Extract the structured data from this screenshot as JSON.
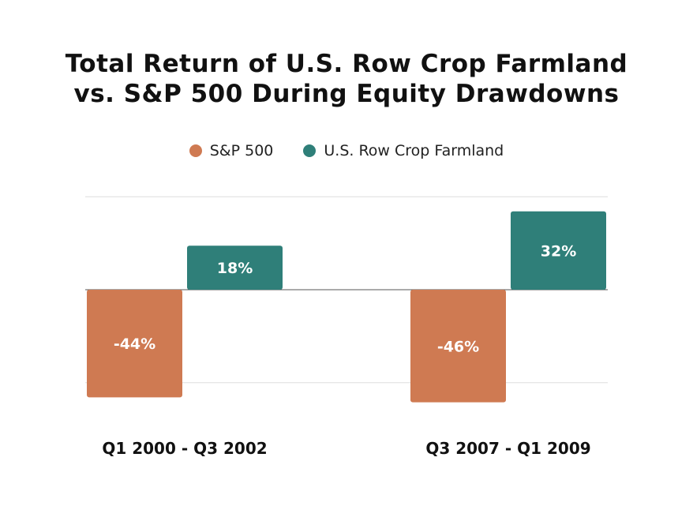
{
  "title_line1": "Total Return of U.S. Row Crop Farmland",
  "title_line2": "vs. S&P 500 During Equity Drawdowns",
  "colors": {
    "sp500": "#CF7A52",
    "farmland": "#2F7F79",
    "baseline": "#555555",
    "grid": "#dddddd",
    "bar_label": "#ffffff",
    "axis_label": "#111111"
  },
  "chart_data": {
    "type": "bar",
    "title": "Total Return of U.S. Row Crop Farmland vs. S&P 500 During Equity Drawdowns",
    "categories": [
      "Q1 2000 - Q3 2002",
      "Q3 2007 - Q1 2009"
    ],
    "series": [
      {
        "name": "S&P 500",
        "values": [
          -44,
          -46
        ],
        "labels": [
          "-44%",
          "-46%"
        ]
      },
      {
        "name": "U.S. Row Crop Farmland",
        "values": [
          18,
          32
        ],
        "labels": [
          "18%",
          "32%"
        ]
      }
    ],
    "ylim": [
      -46,
      40
    ],
    "grid": true,
    "legend": "top-center"
  }
}
